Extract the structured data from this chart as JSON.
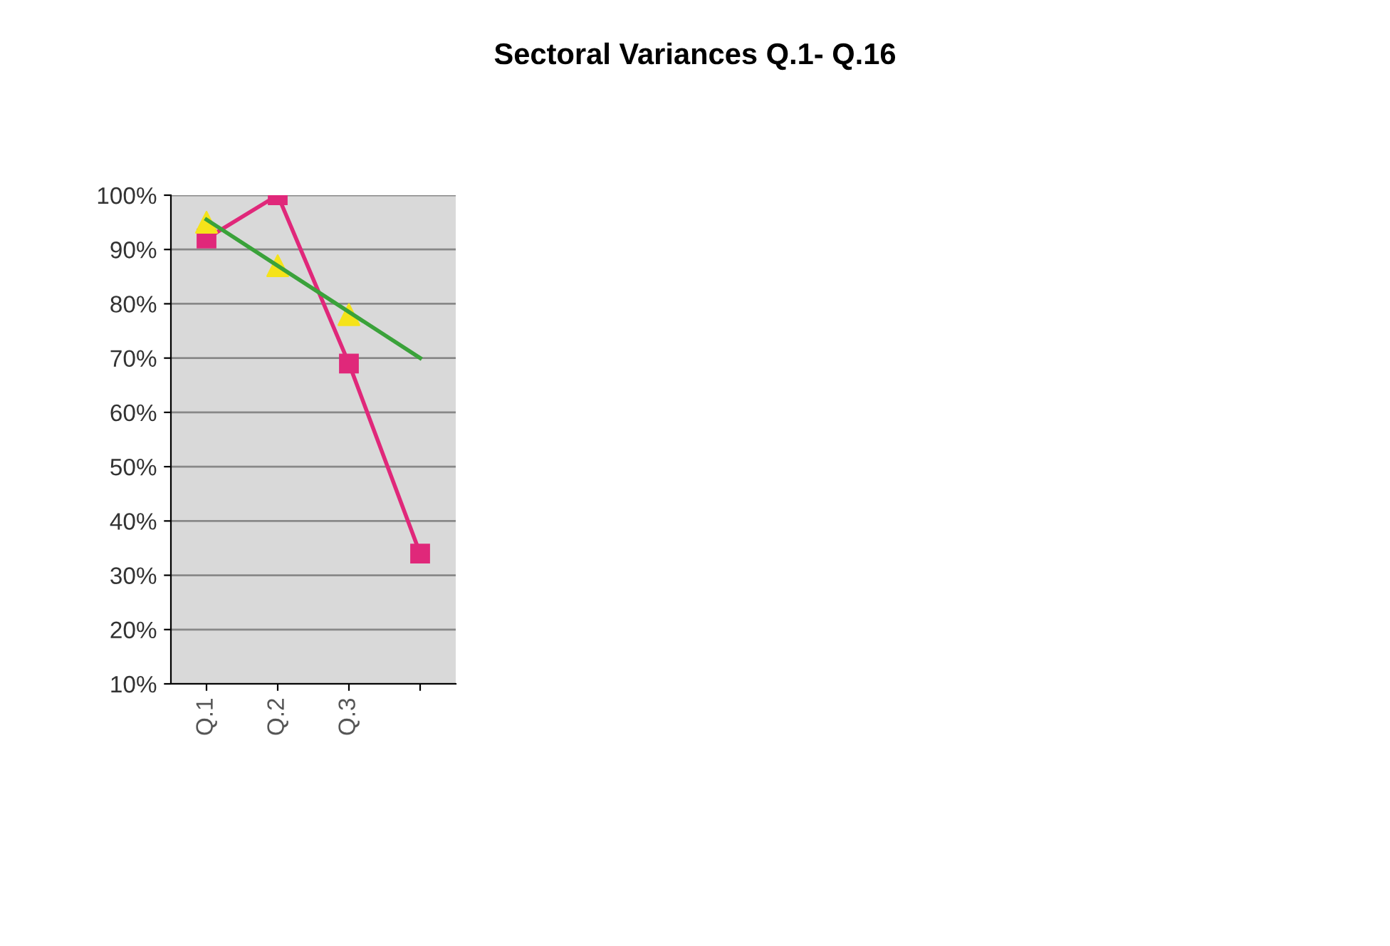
{
  "chart_data": {
    "type": "line",
    "title": "Sectoral Variances Q.1- Q.16",
    "categories": [
      "Q.1",
      "Q.2",
      "Q.3",
      null
    ],
    "series": [
      {
        "color": "#e0287a",
        "values": [
          92,
          100,
          69,
          34
        ],
        "marker": "square"
      },
      {
        "type": "scatter",
        "color": "#f5e31a",
        "values": [
          95,
          87,
          78,
          null
        ],
        "marker": "triangle"
      },
      {
        "color": "#3aa23a",
        "values": [
          95.5,
          87,
          78.5,
          70
        ],
        "marker": "none"
      }
    ],
    "ylim": [
      10,
      100
    ],
    "yticks": [
      {
        "value": 10,
        "label": "10%"
      },
      {
        "value": 20,
        "label": "20%"
      },
      {
        "value": 30,
        "label": "30%"
      },
      {
        "value": 40,
        "label": "40%"
      },
      {
        "value": 50,
        "label": "50%"
      },
      {
        "value": 60,
        "label": "60%"
      },
      {
        "value": 70,
        "label": "70%"
      },
      {
        "value": 80,
        "label": "80%"
      },
      {
        "value": 90,
        "label": "90%"
      },
      {
        "value": 100,
        "label": "100%"
      }
    ],
    "grid": "y"
  }
}
